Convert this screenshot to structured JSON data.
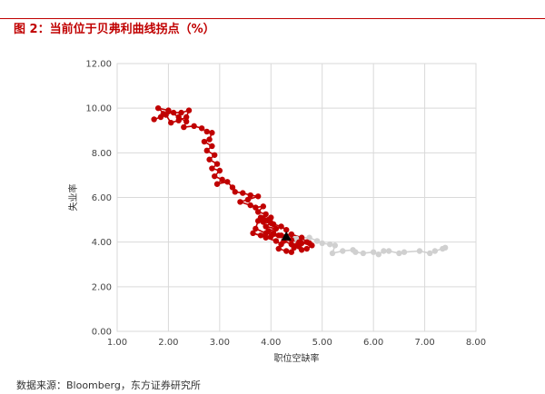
{
  "figure": {
    "title": "图 2：当前位于贝弗利曲线拐点（%）",
    "source": "数据来源：Bloomberg，东方证券研究所"
  },
  "colors": {
    "title": "#c00000",
    "historical_series": "#c00000",
    "recent_series": "#d0d0d0",
    "current_marker": "#000000",
    "grid": "#d9d9d9"
  },
  "chart_data": {
    "type": "scatter",
    "title": "图 2：当前位于贝弗利曲线拐点（%）",
    "xlabel": "职位空缺率",
    "ylabel": "失业率",
    "xlim": [
      1,
      8
    ],
    "ylim": [
      0,
      12
    ],
    "x_ticks": [
      "1.00",
      "2.00",
      "3.00",
      "4.00",
      "5.00",
      "6.00",
      "7.00",
      "8.00"
    ],
    "y_ticks": [
      "0.00",
      "2.00",
      "4.00",
      "6.00",
      "8.00",
      "10.00",
      "12.00"
    ],
    "grid": true,
    "legend": "none",
    "connected": true,
    "series": [
      {
        "color": "#c00000",
        "points": [
          [
            1.72,
            9.5
          ],
          [
            1.85,
            9.6
          ],
          [
            1.9,
            9.75
          ],
          [
            2.0,
            9.85
          ],
          [
            2.1,
            9.8
          ],
          [
            2.25,
            9.8
          ],
          [
            2.4,
            9.9
          ],
          [
            2.35,
            9.6
          ],
          [
            2.2,
            9.45
          ],
          [
            2.05,
            9.35
          ],
          [
            1.95,
            9.7
          ],
          [
            1.8,
            10.0
          ],
          [
            2.0,
            9.9
          ],
          [
            2.2,
            9.6
          ],
          [
            2.35,
            9.4
          ],
          [
            2.3,
            9.15
          ],
          [
            2.5,
            9.2
          ],
          [
            2.65,
            9.1
          ],
          [
            2.75,
            8.95
          ],
          [
            2.85,
            8.9
          ],
          [
            2.8,
            8.6
          ],
          [
            2.7,
            8.5
          ],
          [
            2.85,
            8.3
          ],
          [
            2.75,
            8.1
          ],
          [
            2.9,
            7.9
          ],
          [
            2.8,
            7.7
          ],
          [
            2.95,
            7.5
          ],
          [
            2.85,
            7.3
          ],
          [
            3.0,
            7.2
          ],
          [
            2.9,
            6.95
          ],
          [
            3.05,
            6.8
          ],
          [
            2.95,
            6.6
          ],
          [
            3.15,
            6.7
          ],
          [
            3.25,
            6.45
          ],
          [
            3.3,
            6.25
          ],
          [
            3.45,
            6.2
          ],
          [
            3.6,
            6.1
          ],
          [
            3.75,
            6.05
          ],
          [
            3.55,
            5.9
          ],
          [
            3.4,
            5.8
          ],
          [
            3.6,
            5.65
          ],
          [
            3.7,
            5.55
          ],
          [
            3.85,
            5.6
          ],
          [
            3.75,
            5.35
          ],
          [
            3.9,
            5.25
          ],
          [
            3.8,
            5.1
          ],
          [
            3.95,
            5.0
          ],
          [
            3.85,
            4.9
          ],
          [
            4.0,
            4.85
          ],
          [
            3.9,
            4.7
          ],
          [
            4.1,
            4.6
          ],
          [
            3.95,
            4.5
          ],
          [
            4.05,
            4.4
          ],
          [
            4.15,
            4.3
          ],
          [
            4.0,
            4.25
          ],
          [
            3.8,
            4.3
          ],
          [
            3.65,
            4.4
          ],
          [
            3.9,
            4.2
          ],
          [
            4.1,
            4.05
          ],
          [
            4.2,
            3.9
          ],
          [
            4.15,
            3.7
          ],
          [
            4.3,
            3.6
          ],
          [
            4.4,
            3.55
          ],
          [
            4.45,
            3.75
          ],
          [
            4.55,
            3.8
          ],
          [
            4.6,
            3.65
          ],
          [
            4.7,
            3.7
          ],
          [
            4.8,
            3.85
          ],
          [
            4.75,
            3.95
          ],
          [
            4.6,
            3.95
          ],
          [
            4.5,
            3.85
          ],
          [
            4.4,
            3.9
          ],
          [
            4.25,
            4.05
          ],
          [
            4.4,
            4.1
          ],
          [
            4.55,
            4.0
          ],
          [
            4.7,
            4.0
          ],
          [
            4.6,
            4.2
          ],
          [
            4.4,
            4.35
          ],
          [
            4.2,
            4.3
          ],
          [
            3.9,
            4.4
          ],
          [
            3.7,
            4.6
          ],
          [
            3.75,
            4.95
          ],
          [
            3.85,
            5.05
          ],
          [
            4.0,
            5.1
          ],
          [
            4.05,
            4.8
          ],
          [
            4.2,
            4.7
          ],
          [
            4.3,
            4.55
          ]
        ]
      },
      {
        "color": "#d0d0d0",
        "points": [
          [
            4.3,
            4.2
          ],
          [
            4.4,
            4.2
          ],
          [
            4.5,
            4.15
          ],
          [
            4.6,
            4.2
          ],
          [
            4.75,
            4.2
          ],
          [
            4.9,
            4.05
          ],
          [
            5.0,
            3.95
          ],
          [
            5.15,
            3.9
          ],
          [
            5.25,
            3.85
          ],
          [
            5.2,
            3.5
          ],
          [
            5.4,
            3.6
          ],
          [
            5.6,
            3.65
          ],
          [
            5.65,
            3.55
          ],
          [
            5.8,
            3.5
          ],
          [
            6.0,
            3.55
          ],
          [
            6.1,
            3.45
          ],
          [
            6.2,
            3.6
          ],
          [
            6.3,
            3.6
          ],
          [
            6.5,
            3.5
          ],
          [
            6.6,
            3.55
          ],
          [
            6.9,
            3.6
          ],
          [
            7.1,
            3.5
          ],
          [
            7.2,
            3.6
          ],
          [
            7.35,
            3.7
          ],
          [
            7.4,
            3.75
          ]
        ]
      }
    ],
    "current_point": [
      4.3,
      4.2
    ]
  }
}
